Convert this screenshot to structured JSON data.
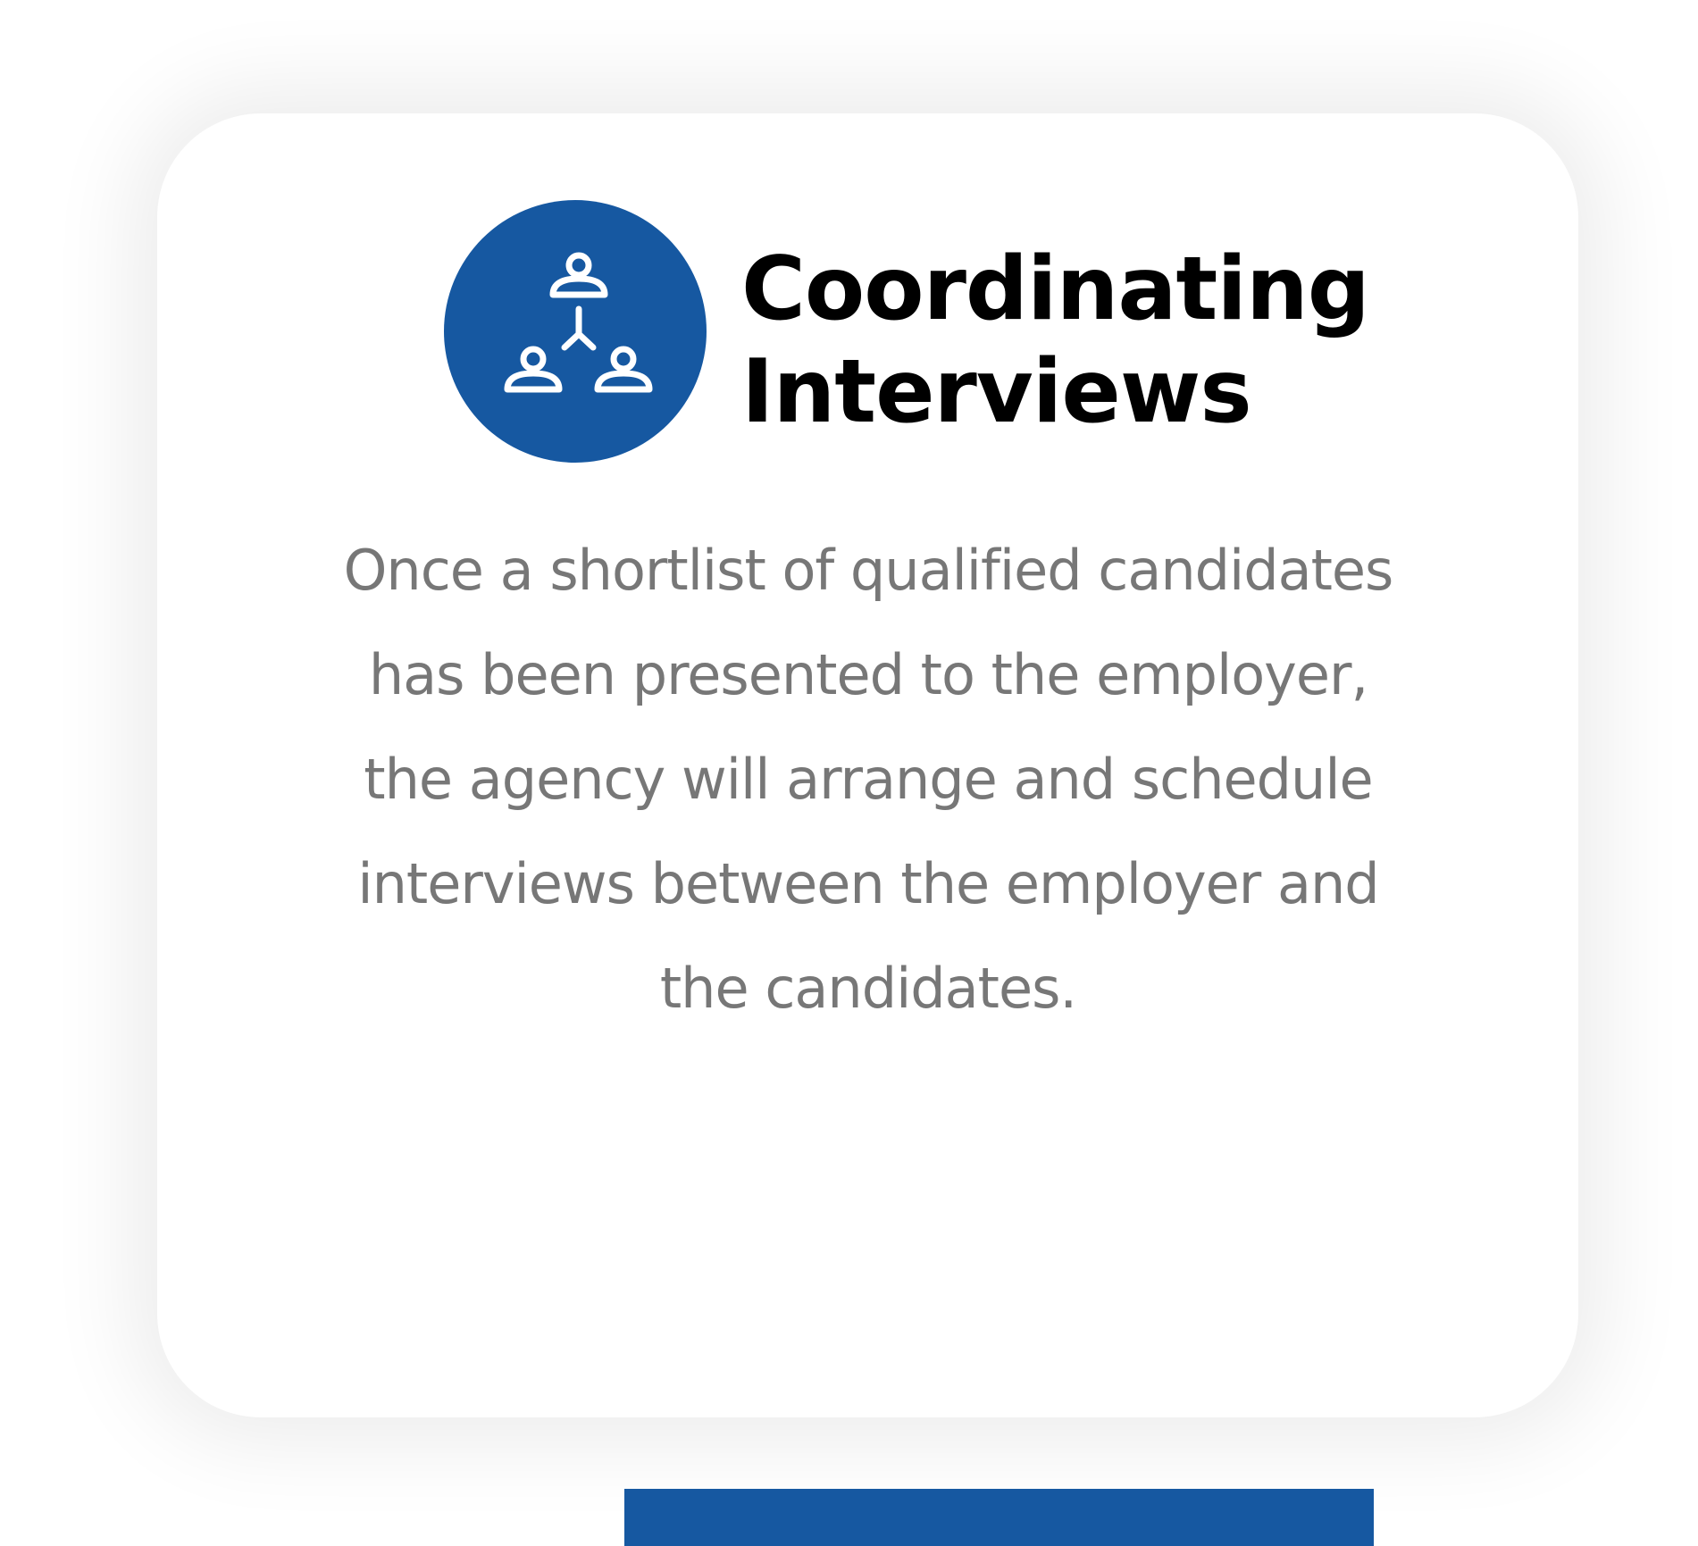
{
  "card": {
    "title_lines": [
      "Coordinating",
      "Interviews"
    ],
    "description_lines": [
      "Once a shortlist of qualified candidates",
      "has been presented to the employer,",
      "the agency will arrange and schedule",
      "interviews between the employer and",
      "the candidates."
    ],
    "icon": "team-network-icon"
  },
  "colors": {
    "accent": "#1658a1",
    "title_text": "#000000",
    "body_text": "#777777",
    "card_background": "#ffffff"
  }
}
